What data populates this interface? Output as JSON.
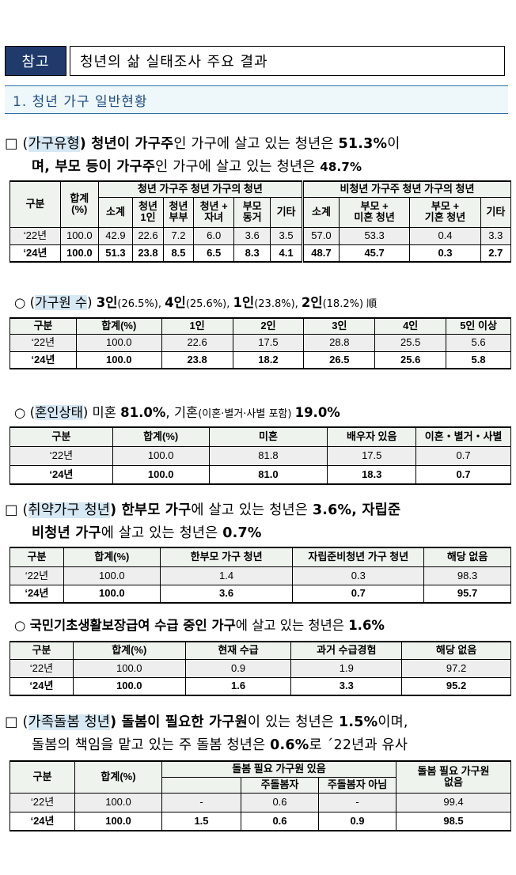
{
  "header": {
    "ref_label": "참고",
    "ref_title": "청년의 삶 실태조사 주요 결과"
  },
  "section": {
    "title": "1. 청년 가구 일반현황"
  },
  "p1": {
    "bullet": "□",
    "l1_a": "(",
    "l1_b": "가구유형",
    "l1_c": ") 청년이 가구주",
    "l1_d": "인 가구에 살고 있는 청년은 ",
    "l1_e": "51.3%",
    "l1_f": "이",
    "l2_a": "며, 부모 등이 가구주",
    "l2_b": "인 가구에 살고 있는 청년은 ",
    "l2_c": "48.7%"
  },
  "t1": {
    "h_gubun": "구분",
    "h_total": "합계\n(%)",
    "h_group1": "청년 가구주 청년 가구의 청년",
    "h_group2": "비청년 가구주 청년 가구의 청년",
    "cols": [
      "소계",
      "청년\n1인",
      "청년\n부부",
      "청년 +\n자녀",
      "부모\n동거",
      "기타",
      "소계",
      "부모 +\n미혼 청년",
      "부모 +\n기혼 청년",
      "기타"
    ],
    "rows": [
      {
        "label": "‘22년",
        "cells": [
          "100.0",
          "42.9",
          "22.6",
          "7.2",
          "6.0",
          "3.6",
          "3.5",
          "57.0",
          "53.3",
          "0.4",
          "3.3"
        ]
      },
      {
        "label": "‘24년",
        "cells": [
          "100.0",
          "51.3",
          "23.8",
          "8.5",
          "6.5",
          "8.3",
          "4.1",
          "48.7",
          "45.7",
          "0.3",
          "2.7"
        ]
      }
    ]
  },
  "p2": {
    "bullet": "○",
    "a": "(",
    "b": "가구원 수",
    "c": ") ",
    "d": "3인",
    "e": "(26.5%), ",
    "f": "4인",
    "g": "(25.6%),  ",
    "h": "1인",
    "i": "(23.8%),  ",
    "j": "2인",
    "k": "(18.2%)  順"
  },
  "t2": {
    "headers": [
      "구분",
      "합계(%)",
      "1인",
      "2인",
      "3인",
      "4인",
      "5인 이상"
    ],
    "rows": [
      {
        "cells": [
          "‘22년",
          "100.0",
          "22.6",
          "17.5",
          "28.8",
          "25.5",
          "5.6"
        ]
      },
      {
        "cells": [
          "‘24년",
          "100.0",
          "23.8",
          "18.2",
          "26.5",
          "25.6",
          "5.8"
        ]
      }
    ]
  },
  "p3": {
    "bullet": "○",
    "a": "(",
    "b": "혼인상태",
    "c": ") 미혼 ",
    "d": "81.0%",
    "e": ", 기혼",
    "f": "(이혼·별거·사별 포함) ",
    "g": "19.0%"
  },
  "t3": {
    "headers": [
      "구분",
      "합계(%)",
      "미혼",
      "배우자 있음",
      "이혼・별거・사별"
    ],
    "rows": [
      {
        "cells": [
          "‘22년",
          "100.0",
          "81.8",
          "17.5",
          "0.7"
        ]
      },
      {
        "cells": [
          "‘24년",
          "100.0",
          "81.0",
          "18.3",
          "0.7"
        ]
      }
    ]
  },
  "p4": {
    "bullet": "□",
    "a": "(",
    "b": "취약가구 청년",
    "c": ") 한부모 가구",
    "d": "에 살고 있는 청년은 ",
    "e": "3.6%",
    "f": ", 자립준",
    "l2_a": "비청년 가구",
    "l2_b": "에 살고 있는 청년은 ",
    "l2_c": "0.7%"
  },
  "t4": {
    "headers": [
      "구분",
      "합계(%)",
      "한부모 가구 청년",
      "자립준비청년 가구 청년",
      "해당 없음"
    ],
    "rows": [
      {
        "cells": [
          "‘22년",
          "100.0",
          "1.4",
          "0.3",
          "98.3"
        ]
      },
      {
        "cells": [
          "‘24년",
          "100.0",
          "3.6",
          "0.7",
          "95.7"
        ]
      }
    ]
  },
  "p5": {
    "bullet": "○",
    "a": "국민기초생활보장급여 수급 중인 가구",
    "b": "에 살고 있는 청년은 ",
    "c": "1.6%"
  },
  "t5": {
    "headers": [
      "구분",
      "합계(%)",
      "현재 수급",
      "과거 수급경험",
      "해당 없음"
    ],
    "rows": [
      {
        "cells": [
          "‘22년",
          "100.0",
          "0.9",
          "1.9",
          "97.2"
        ]
      },
      {
        "cells": [
          "‘24년",
          "100.0",
          "1.6",
          "3.3",
          "95.2"
        ]
      }
    ]
  },
  "p6": {
    "bullet": "□",
    "a": "(",
    "b": "가족돌봄 청년",
    "c": ") 돌봄이 필요한 가구원",
    "d": "이 있는 청년은 ",
    "e": "1.5%",
    "f": "이며,",
    "l2_a": "돌봄의 책임을 맡고 있는 주 돌봄 청년은 ",
    "l2_b": "0.6%",
    "l2_c": "로 ´22년과 유사"
  },
  "t6": {
    "h_gubun": "구분",
    "h_total": "합계(%)",
    "h_need": "돌봄 필요 가구원 있음",
    "h_none": "돌봄 필요 가구원\n없음",
    "h_main": "주돌봄자",
    "h_notmain": "주돌봄자 아님",
    "rows": [
      {
        "cells": [
          "‘22년",
          "100.0",
          "-",
          "0.6",
          "-",
          "99.4"
        ]
      },
      {
        "cells": [
          "‘24년",
          "100.0",
          "1.5",
          "0.6",
          "0.9",
          "98.5"
        ]
      }
    ]
  }
}
